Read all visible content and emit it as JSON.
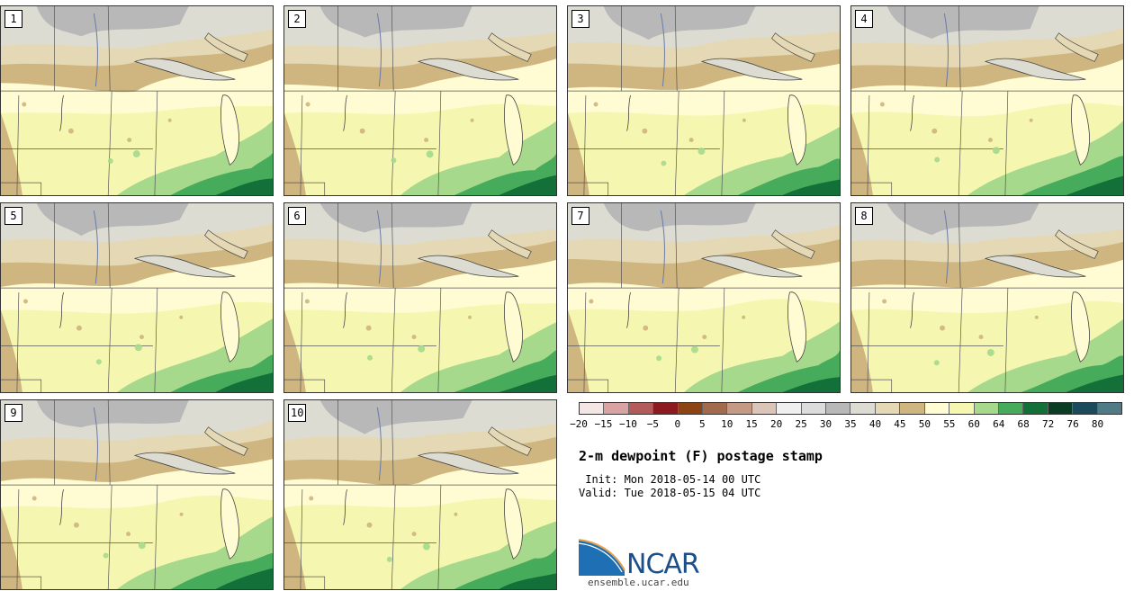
{
  "panels": [
    {
      "label": "1"
    },
    {
      "label": "2"
    },
    {
      "label": "3"
    },
    {
      "label": "4"
    },
    {
      "label": "5"
    },
    {
      "label": "6"
    },
    {
      "label": "7"
    },
    {
      "label": "8"
    },
    {
      "label": "9"
    },
    {
      "label": "10"
    }
  ],
  "colorbar": {
    "colors": [
      "#f5e6e6",
      "#d9a3a3",
      "#b35a5a",
      "#8c1a1f",
      "#8c4414",
      "#a36b4d",
      "#c49a85",
      "#dbc4b8",
      "#f0f0f0",
      "#dcdcdc",
      "#b8b8b8",
      "#dcdcd2",
      "#e5d9b5",
      "#cfb57f",
      "#fffbd2",
      "#f5f7b0",
      "#a6d98c",
      "#47ab5c",
      "#137038",
      "#0a3d24",
      "#1a4a5c",
      "#507a85"
    ],
    "ticks": [
      "−20",
      "−15",
      "−10",
      "−5",
      "0",
      "5",
      "10",
      "15",
      "20",
      "25",
      "30",
      "35",
      "40",
      "45",
      "50",
      "55",
      "60",
      "64",
      "68",
      "72",
      "76",
      "80"
    ]
  },
  "title": "2-m dewpoint (F) postage stamp",
  "init": " Init: Mon 2018-05-14 00 UTC",
  "valid": "Valid: Tue 2018-05-15 04 UTC",
  "logo": {
    "name": "NCAR",
    "url": "ensemble.ucar.edu"
  }
}
